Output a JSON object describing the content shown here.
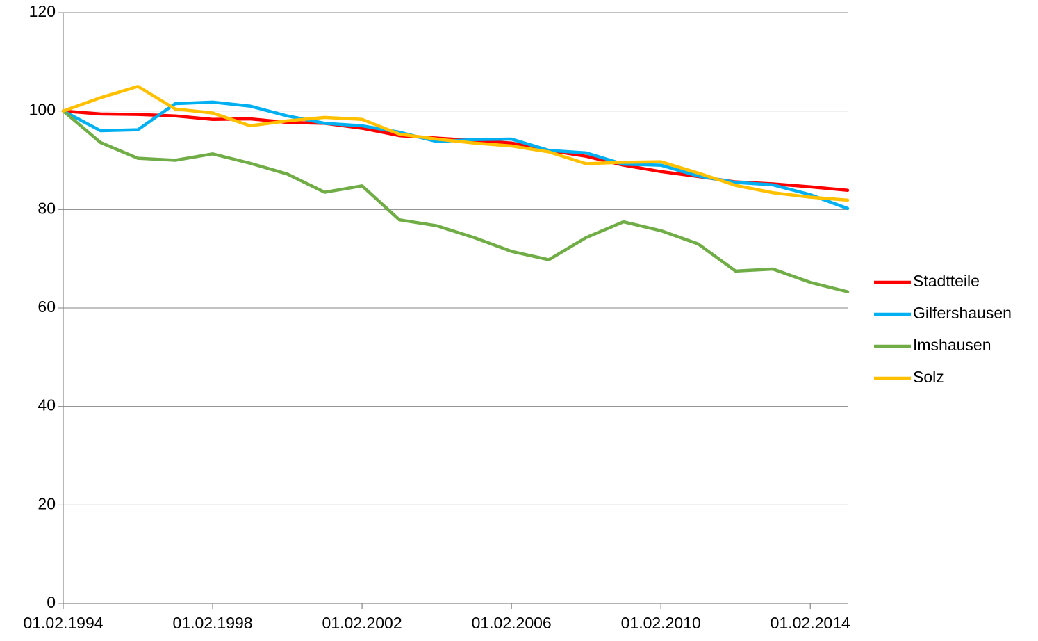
{
  "chart_data": {
    "type": "line",
    "categories": [
      "01.02.1994",
      null,
      null,
      null,
      "01.02.1998",
      null,
      null,
      null,
      "01.02.2002",
      null,
      null,
      null,
      "01.02.2006",
      null,
      null,
      null,
      "01.02.2010",
      null,
      null,
      null,
      "01.02.2014",
      null
    ],
    "series": [
      {
        "name": "Stadtteile",
        "color": "#ff0000",
        "values": [
          100,
          99.4,
          99.3,
          99.0,
          98.3,
          98.4,
          97.7,
          97.5,
          96.5,
          95.0,
          94.5,
          94.0,
          93.5,
          92.0,
          90.8,
          89.0,
          87.7,
          86.7,
          85.6,
          85.2,
          84.6,
          83.9
        ]
      },
      {
        "name": "Gilfershausen",
        "color": "#00b0f0",
        "values": [
          100,
          96.0,
          96.2,
          101.5,
          101.8,
          101.0,
          99.0,
          97.5,
          97.0,
          95.7,
          93.8,
          94.2,
          94.3,
          92.0,
          91.5,
          89.2,
          89.0,
          86.8,
          85.5,
          85.0,
          83.0,
          80.2
        ]
      },
      {
        "name": "Imshausen",
        "color": "#70ad47",
        "values": [
          100,
          93.6,
          90.4,
          90.0,
          91.3,
          89.4,
          87.2,
          83.5,
          84.8,
          77.9,
          76.7,
          74.3,
          71.5,
          69.8,
          74.3,
          77.5,
          75.7,
          73.0,
          67.5,
          67.9,
          65.2,
          63.3
        ]
      },
      {
        "name": "Solz",
        "color": "#ffc000",
        "values": [
          100,
          102.7,
          105.0,
          100.4,
          99.6,
          97.0,
          98.0,
          98.7,
          98.3,
          95.3,
          94.3,
          93.5,
          92.9,
          91.7,
          89.3,
          89.6,
          89.7,
          87.4,
          84.9,
          83.4,
          82.5,
          81.9
        ]
      }
    ],
    "ylim": [
      0,
      120
    ],
    "yticks": [
      0,
      20,
      40,
      60,
      80,
      100,
      120
    ],
    "grid": true,
    "legend": "right"
  }
}
